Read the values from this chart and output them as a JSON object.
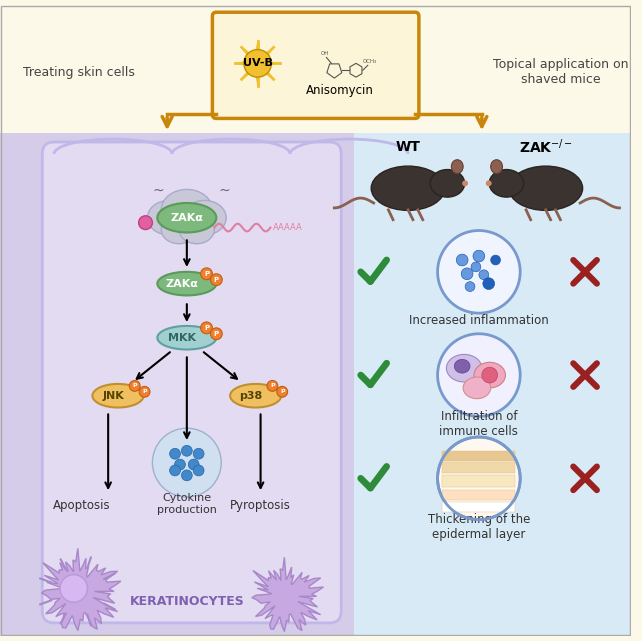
{
  "bg_top_color": "#fdf9e8",
  "bg_left_color": "#ddd8f0",
  "bg_right_color": "#daeaf5",
  "cell_fill": "#e8e3f5",
  "cell_border": "#b8aee0",
  "arrow_color": "#c8860a",
  "box_border_color": "#c8860a",
  "box_fill": "#fdf5d8",
  "uvb_color": "#f0c030",
  "green_check_color": "#2e8b3a",
  "red_x_color": "#9b2020",
  "text_color": "#333333",
  "label_left": "Treating skin cells",
  "label_right": "Topical application on\nshaved mice",
  "label_uvb": "UV-B",
  "label_aniso": "Anisomycin",
  "label_zaka1": "ZAKα",
  "label_zaka2": "ZAKα",
  "label_mkk": "MKK",
  "label_jnk": "JNK",
  "label_p38": "p38",
  "label_cytokine": "Cytokine\nproduction",
  "label_apoptosis": "Apoptosis",
  "label_pyroptosis": "Pyroptosis",
  "label_keratinocytes": "KERATINOCYTES",
  "label_wt": "WT",
  "label_zak_ko": "ZAK",
  "label_inflammation": "Increased inflammation",
  "label_infiltration": "Infiltration of\nimmune cells",
  "label_thickening": "Thickening of the\nepidermal layer",
  "zaka_fill": "#7db87d",
  "zaka_border": "#5a9a5a",
  "mkk_fill": "#a0d0d0",
  "mkk_border": "#60a0a0",
  "jnk_fill": "#f0c060",
  "jnk_border": "#c09030",
  "p38_fill": "#f0c060",
  "p38_border": "#c09030",
  "phospho_fill": "#f08030",
  "phospho_border": "#c06010",
  "ribosome_fill": "#b0b0c0",
  "cytokine_bg": "#d8e8f8",
  "cytokine_dot_color": "#4080c0"
}
